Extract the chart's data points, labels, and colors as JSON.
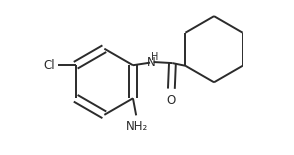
{
  "background_color": "#ffffff",
  "line_color": "#2b2b2b",
  "line_width": 1.4,
  "figsize": [
    2.94,
    1.55
  ],
  "dpi": 100,
  "label_Cl": "Cl",
  "label_NH": "H",
  "label_O": "O",
  "label_NH2": "NH₂",
  "font_size_small": 7.5,
  "font_size_label": 8.5
}
